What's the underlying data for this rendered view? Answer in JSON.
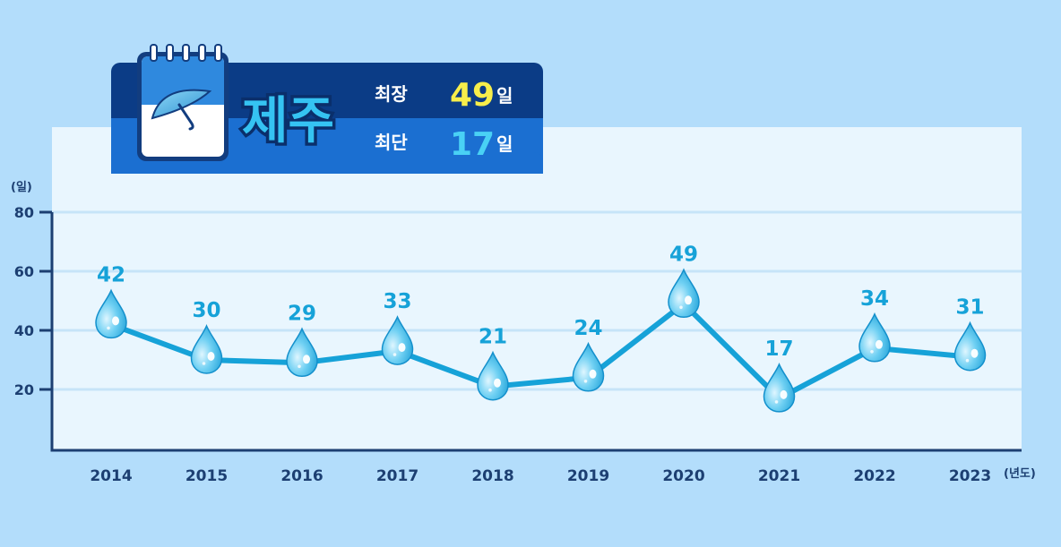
{
  "header": {
    "region": "제주",
    "longest_label": "최장",
    "longest_value": "49",
    "shortest_label": "최단",
    "shortest_value": "17",
    "unit": "일",
    "icon": "calendar-umbrella-icon"
  },
  "chart_data": {
    "type": "line",
    "categories": [
      "2014",
      "2015",
      "2016",
      "2017",
      "2018",
      "2019",
      "2020",
      "2021",
      "2022",
      "2023"
    ],
    "values": [
      42,
      30,
      29,
      33,
      21,
      24,
      49,
      17,
      34,
      31
    ],
    "title": "",
    "xlabel": "(년도)",
    "ylabel": "(일)",
    "ylim": [
      0,
      80
    ],
    "yticks": [
      20,
      40,
      60,
      80
    ],
    "grid": true,
    "marker": "water-drop-icon",
    "colors": {
      "line": "#16a2d8",
      "label": "#16a2d8",
      "axis": "#1c3f72",
      "background": "#b3ddfb",
      "plot_background": "#e9f6fe"
    }
  }
}
